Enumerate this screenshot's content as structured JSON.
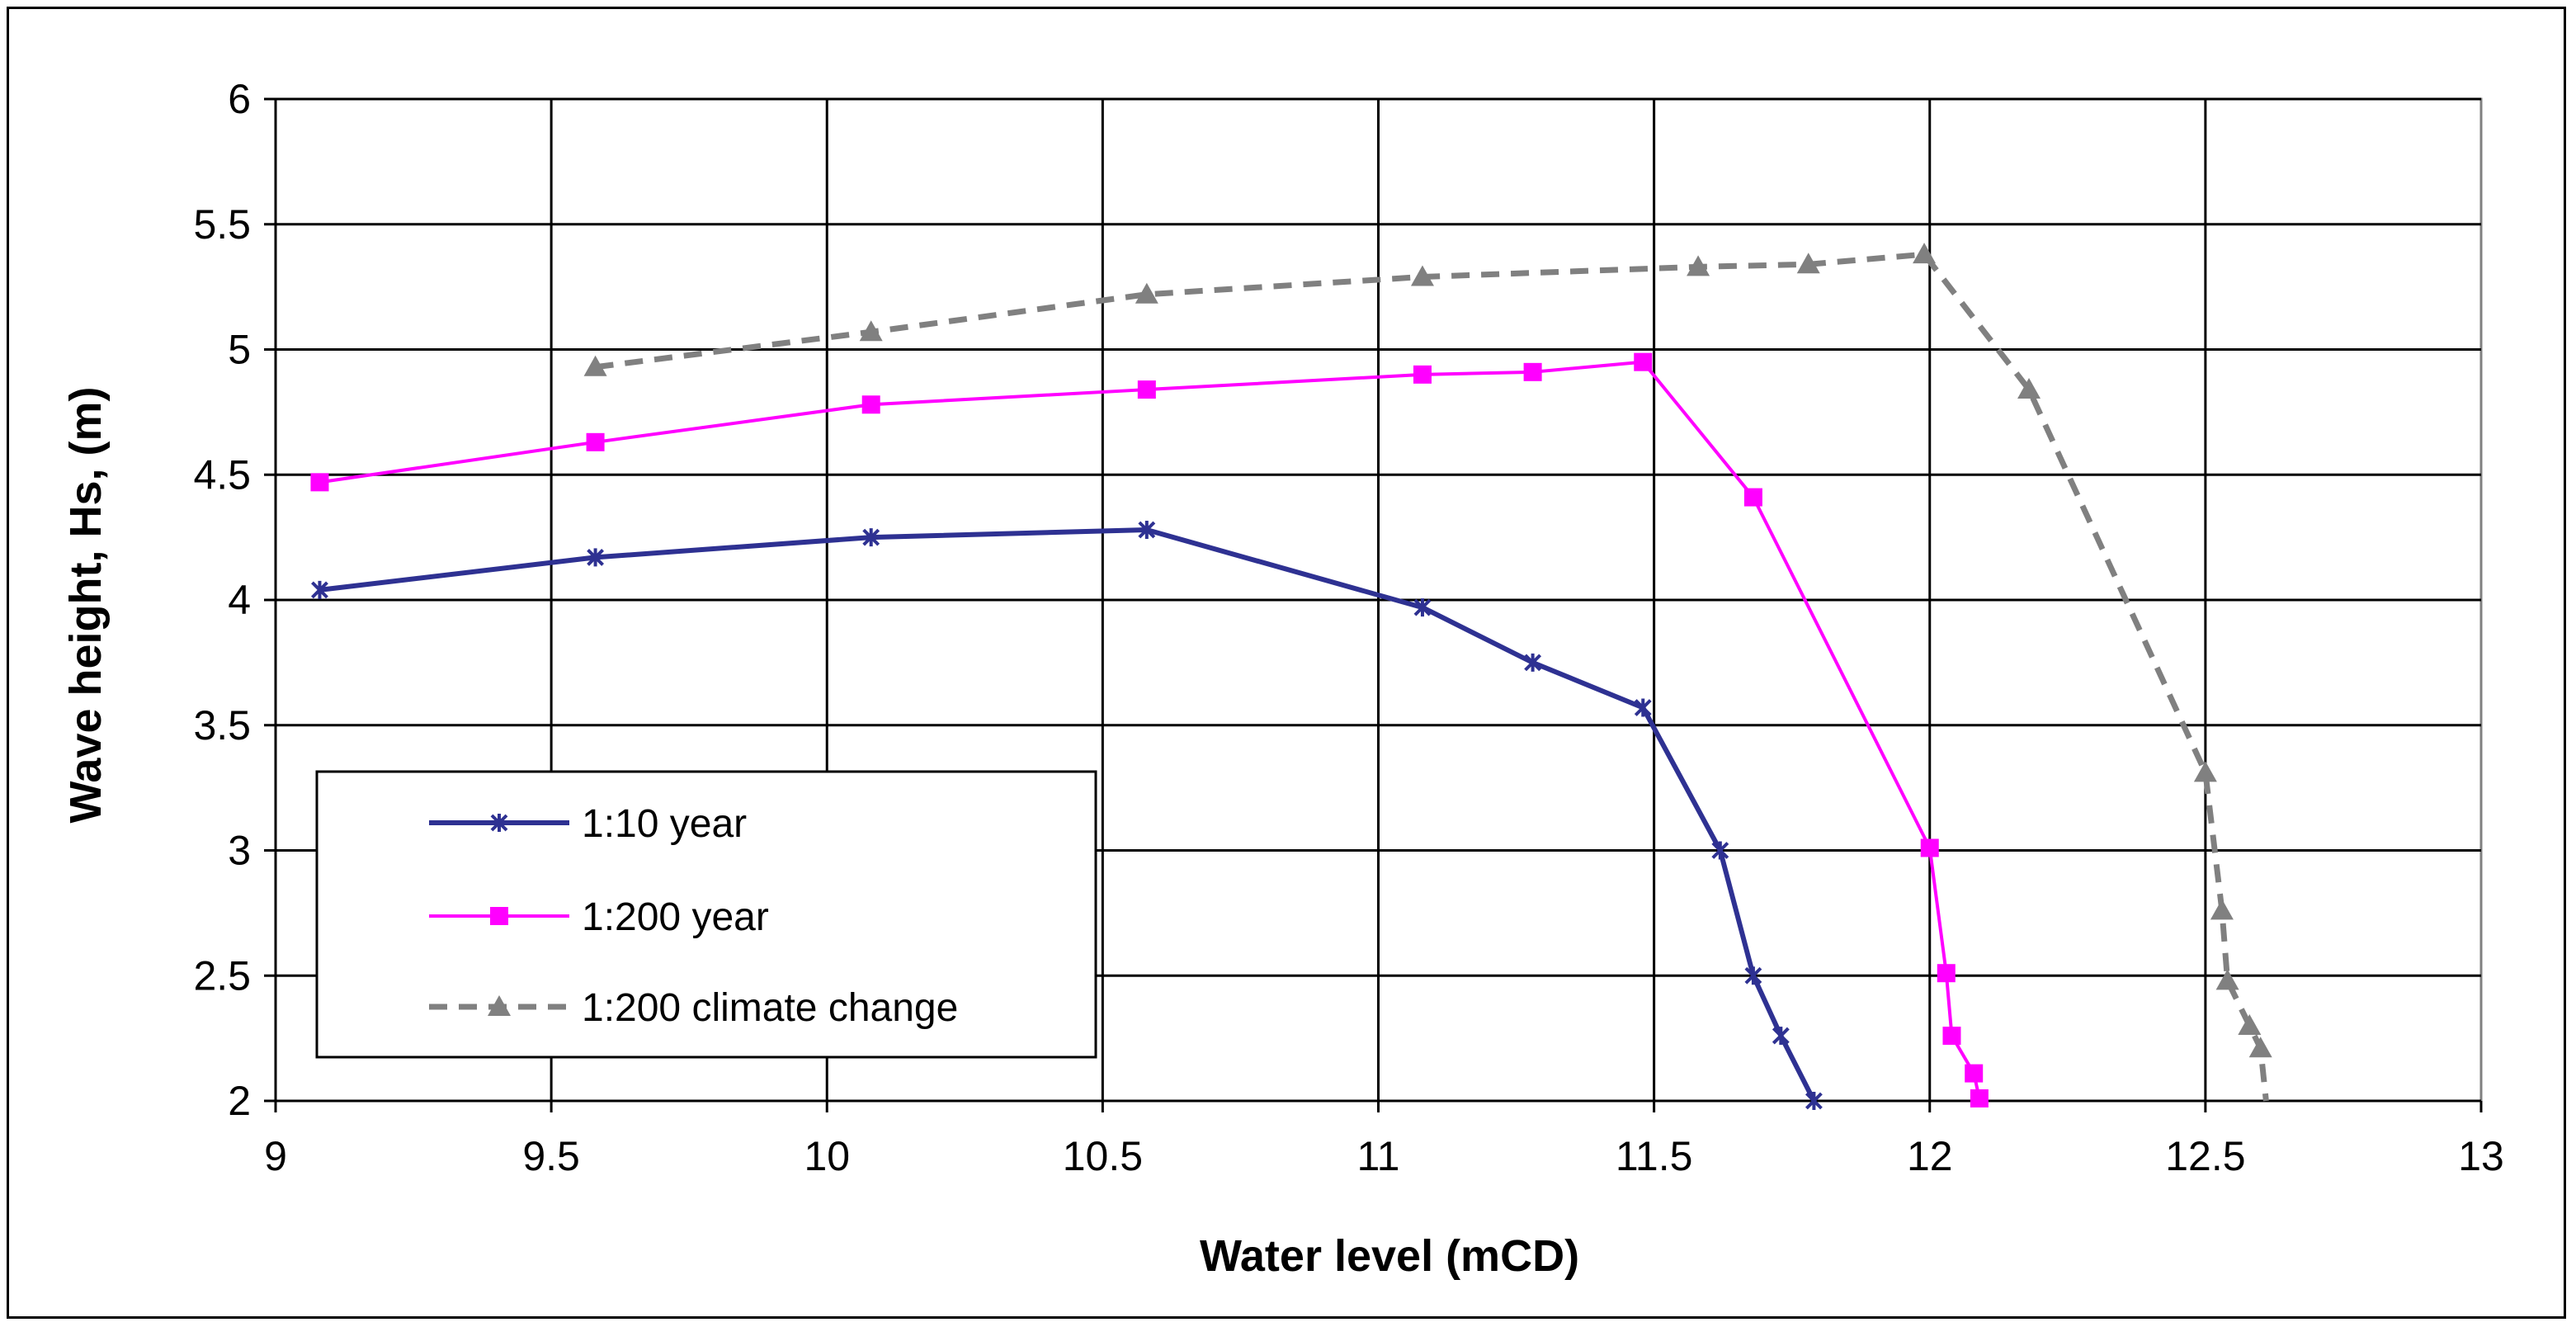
{
  "chart_data": {
    "type": "line",
    "title": "",
    "xlabel": "Water level (mCD)",
    "ylabel": "Wave height, Hs, (m)",
    "xlim": [
      9,
      13
    ],
    "ylim": [
      2,
      6
    ],
    "x_ticks": [
      9,
      9.5,
      10,
      10.5,
      11,
      11.5,
      12,
      12.5,
      13
    ],
    "y_ticks": [
      2,
      2.5,
      3,
      3.5,
      4,
      4.5,
      5,
      5.5,
      6
    ],
    "x_tick_labels": [
      "9",
      "9.5",
      "10",
      "10.5",
      "11",
      "11.5",
      "12",
      "12.5",
      "13"
    ],
    "y_tick_labels": [
      "2",
      "2.5",
      "3",
      "3.5",
      "4",
      "4.5",
      "5",
      "5.5",
      "6"
    ],
    "grid": true,
    "legend_position": "lower-left",
    "series": [
      {
        "name": "1:10 year",
        "color": "#2E3192",
        "line_style": "solid",
        "marker": "x-star",
        "points": [
          [
            9.08,
            4.04
          ],
          [
            9.58,
            4.17
          ],
          [
            10.08,
            4.25
          ],
          [
            10.58,
            4.28
          ],
          [
            11.08,
            3.97
          ],
          [
            11.28,
            3.75
          ],
          [
            11.48,
            3.57
          ],
          [
            11.62,
            3.0
          ],
          [
            11.68,
            2.5
          ],
          [
            11.73,
            2.26
          ],
          [
            11.79,
            2.0
          ]
        ]
      },
      {
        "name": "1:200 year",
        "color": "#FF00FF",
        "line_style": "solid",
        "marker": "square",
        "points": [
          [
            9.08,
            4.47
          ],
          [
            9.58,
            4.63
          ],
          [
            10.08,
            4.78
          ],
          [
            10.58,
            4.84
          ],
          [
            11.08,
            4.9
          ],
          [
            11.28,
            4.91
          ],
          [
            11.48,
            4.95
          ],
          [
            11.68,
            4.41
          ],
          [
            12.0,
            3.01
          ],
          [
            12.03,
            2.51
          ],
          [
            12.04,
            2.26
          ],
          [
            12.08,
            2.11
          ],
          [
            12.09,
            2.01
          ]
        ]
      },
      {
        "name": "1:200 climate change",
        "color": "#808080",
        "line_style": "dashed",
        "marker": "triangle",
        "points": [
          [
            9.58,
            4.93
          ],
          [
            10.08,
            5.07
          ],
          [
            10.58,
            5.22
          ],
          [
            11.08,
            5.29
          ],
          [
            11.58,
            5.33
          ],
          [
            11.78,
            5.34
          ],
          [
            11.99,
            5.38
          ],
          [
            12.18,
            4.84
          ],
          [
            12.5,
            3.31
          ],
          [
            12.53,
            2.76
          ],
          [
            12.54,
            2.48
          ],
          [
            12.58,
            2.3
          ],
          [
            12.6,
            2.21
          ],
          [
            12.61,
            2.0
          ]
        ]
      }
    ]
  }
}
